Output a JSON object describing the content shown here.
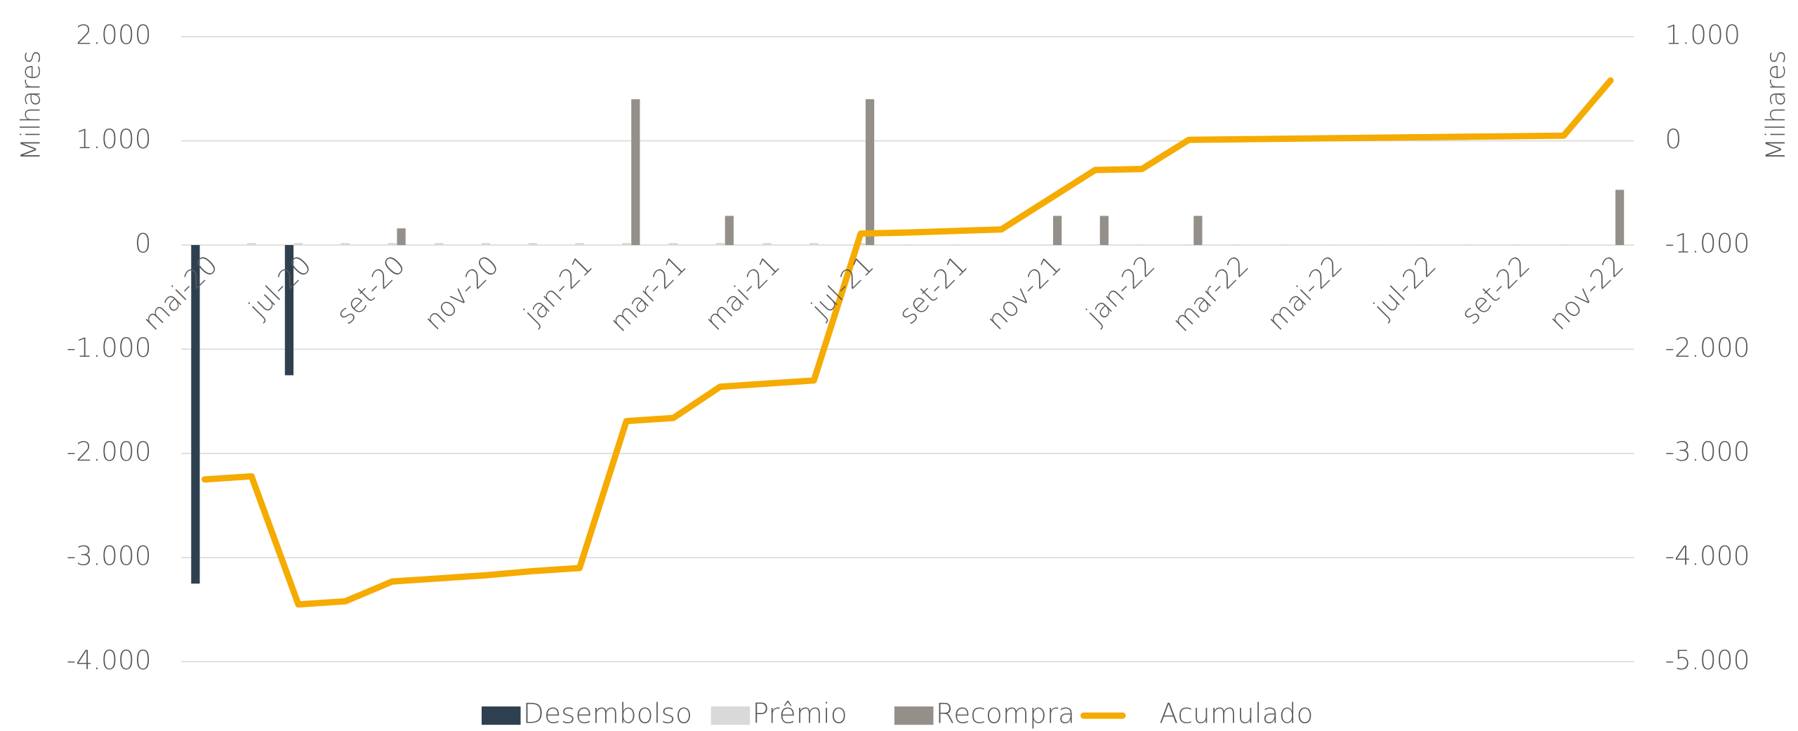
{
  "chart_data": {
    "type": "bar-line",
    "y_label": "Milhares",
    "y2_label": "Milhares",
    "categories": [
      "mai-20",
      null,
      "jul-20",
      null,
      "set-20",
      null,
      "nov-20",
      null,
      "jan-21",
      null,
      "mar-21",
      null,
      "mai-21",
      null,
      "jul-21",
      null,
      "set-21",
      null,
      "nov-21",
      null,
      "jan-22",
      null,
      "mar-22",
      null,
      "mai-22",
      null,
      "jul-22",
      null,
      "set-22",
      null,
      "nov-22"
    ],
    "series": [
      {
        "name": "Desembolso",
        "type": "bar",
        "color": "#2e4050",
        "values": [
          -3250,
          null,
          -1250,
          null,
          null,
          null,
          null,
          null,
          null,
          null,
          null,
          null,
          null,
          null,
          null,
          null,
          null,
          null,
          null,
          null,
          null,
          null,
          null,
          null,
          null,
          null,
          null,
          null,
          null,
          null,
          null
        ]
      },
      {
        "name": "Prêmio",
        "type": "bar",
        "color": "#d9d9d9",
        "values": [
          null,
          20,
          20,
          20,
          20,
          20,
          20,
          20,
          20,
          20,
          20,
          20,
          20,
          20,
          20,
          5,
          5,
          5,
          5,
          5,
          5,
          5,
          5,
          5,
          5,
          5,
          5,
          5,
          5,
          5,
          null
        ]
      },
      {
        "name": "Recompra",
        "type": "bar",
        "color": "#948f89",
        "values": [
          null,
          null,
          null,
          null,
          160,
          null,
          null,
          null,
          null,
          1400,
          null,
          280,
          null,
          null,
          1400,
          null,
          null,
          null,
          280,
          280,
          null,
          280,
          null,
          null,
          null,
          null,
          null,
          null,
          null,
          null,
          530
        ]
      },
      {
        "name": "Acumulado",
        "type": "line",
        "axis": "y2",
        "color": "#f5ab00",
        "values": [
          -3250,
          -3220,
          -4450,
          -4420,
          -4230,
          -4200,
          -4170,
          -4130,
          -4100,
          -2690,
          -2660,
          -2360,
          -2330,
          -2300,
          -890,
          -880,
          -865,
          -850,
          -565,
          -280,
          -270,
          10,
          15,
          20,
          25,
          30,
          35,
          40,
          45,
          50,
          580
        ]
      }
    ],
    "ylim": [
      -4000,
      2000
    ],
    "yticks": [
      {
        "value": -4000,
        "label": "-4.000"
      },
      {
        "value": -3000,
        "label": "-3.000"
      },
      {
        "value": -2000,
        "label": "-2.000"
      },
      {
        "value": -1000,
        "label": "-1.000"
      },
      0,
      {
        "value": 1000,
        "label": "1.000"
      },
      {
        "value": 2000,
        "label": "2.000"
      }
    ],
    "y2lim": [
      -5000,
      1000
    ],
    "y2ticks": [
      {
        "value": -5000,
        "label": "-5.000"
      },
      {
        "value": -4000,
        "label": "-4.000"
      },
      {
        "value": -3000,
        "label": "-3.000"
      },
      {
        "value": -2000,
        "label": "-2.000"
      },
      {
        "value": -1000,
        "label": "-1.000"
      },
      0,
      {
        "value": 1000,
        "label": "1.000"
      }
    ],
    "grid": true,
    "legend": "bottom"
  }
}
